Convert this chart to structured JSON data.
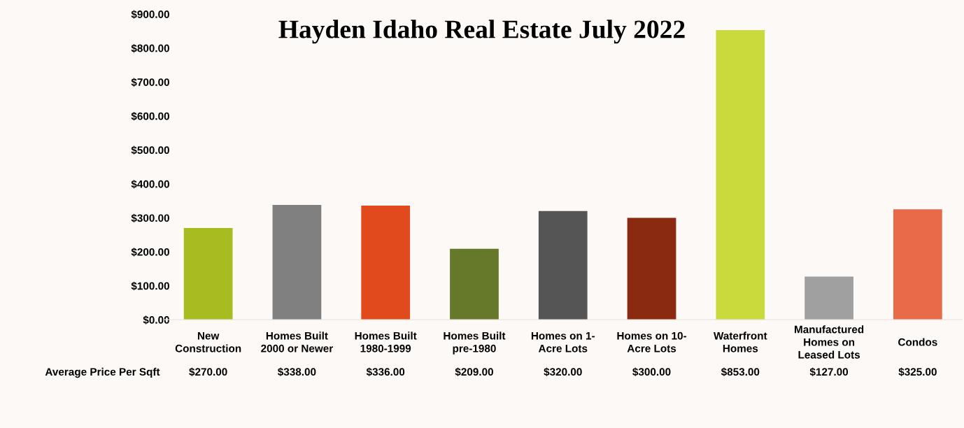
{
  "chart_data": {
    "type": "bar",
    "title": "Hayden Idaho Real Estate July 2022",
    "categories": [
      "New\nConstruction",
      "Homes Built\n2000 or Newer",
      "Homes Built\n1980-1999",
      "Homes Built\npre-1980",
      "Homes on 1-\nAcre Lots",
      "Homes on 10-\nAcre Lots",
      "Waterfront\nHomes",
      "Manufactured\nHomes on\nLeased Lots",
      "Condos"
    ],
    "series": [
      {
        "name": "Average Price Per Sqft",
        "colors": [
          "#a8bc22",
          "#808080",
          "#e04a1c",
          "#66782a",
          "#555555",
          "#8a2a10",
          "#c8da3c",
          "#a0a0a0",
          "#e86a48"
        ],
        "values": [
          270,
          338,
          336,
          209,
          320,
          300,
          853,
          127,
          325
        ],
        "value_labels": [
          "$270.00",
          "$338.00",
          "$336.00",
          "$209.00",
          "$320.00",
          "$300.00",
          "$853.00",
          "$127.00",
          "$325.00"
        ]
      }
    ],
    "ylim": [
      0,
      900
    ],
    "yticks": [
      {
        "value": 0,
        "label": "$0.00"
      },
      {
        "value": 100,
        "label": "$100.00"
      },
      {
        "value": 200,
        "label": "$200.00"
      },
      {
        "value": 300,
        "label": "$300.00"
      },
      {
        "value": 400,
        "label": "$400.00"
      },
      {
        "value": 500,
        "label": "$500.00"
      },
      {
        "value": 600,
        "label": "$600.00"
      },
      {
        "value": 700,
        "label": "$700.00"
      },
      {
        "value": 800,
        "label": "$800.00"
      },
      {
        "value": 900,
        "label": "$900.00"
      }
    ]
  }
}
